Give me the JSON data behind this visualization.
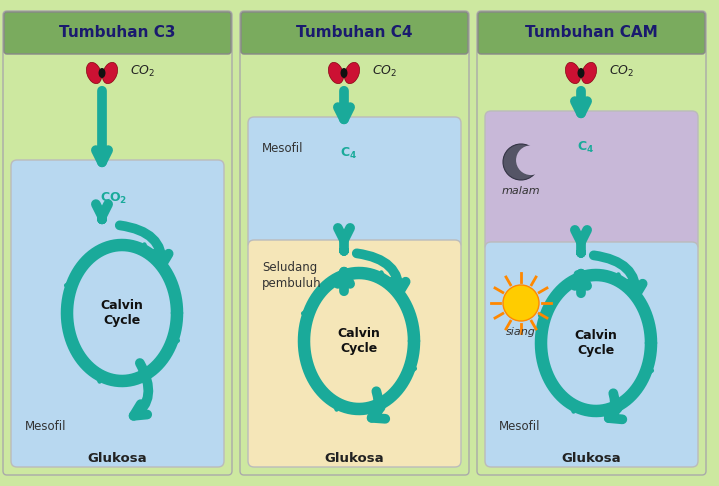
{
  "bg_color": "#cde8a0",
  "header_color": "#7aab5e",
  "header_text_color": "#1a1a6e",
  "teal": "#1aaa9a",
  "panel_border": "#888888",
  "inner_box_c3": "#b8d8f0",
  "inner_box_blue": "#b8d8f0",
  "inner_box_beige": "#f5e6b8",
  "inner_box_purple": "#c8b8d8",
  "panels": [
    "Tumbuhan C3",
    "Tumbuhan C4",
    "Tumbuhan CAM"
  ]
}
